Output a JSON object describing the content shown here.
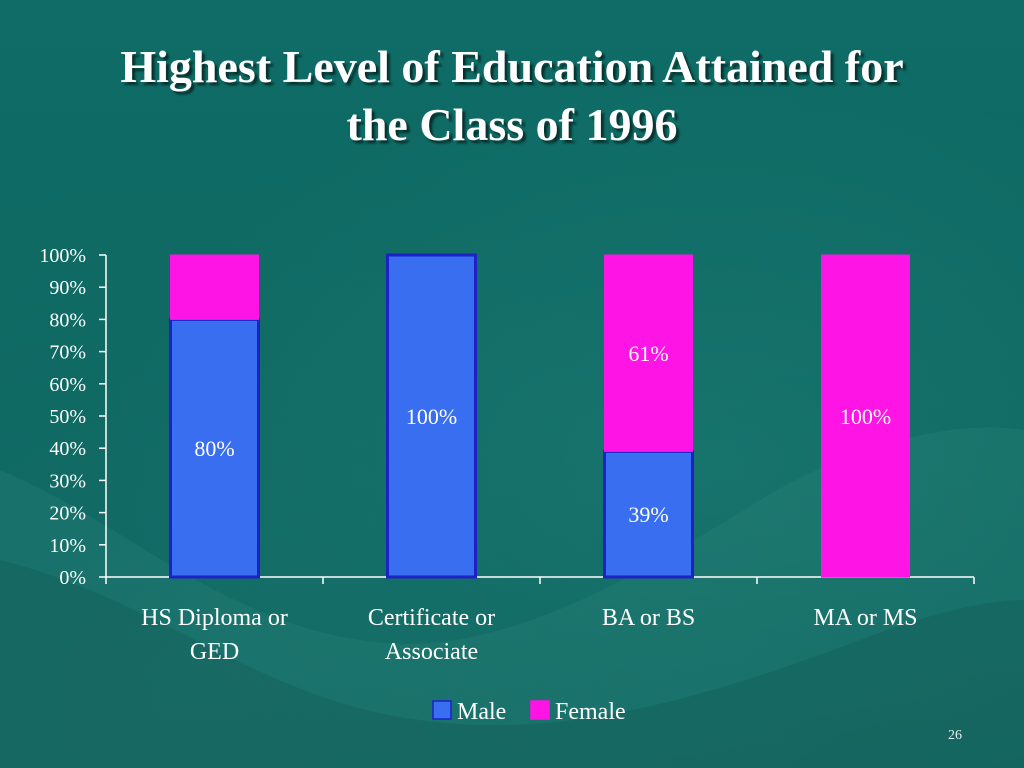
{
  "slide": {
    "title_line1": "Highest Level of Education Attained for",
    "title_line2": "the Class of 1996",
    "page_number": "26"
  },
  "colors": {
    "background": "#0d6660",
    "male": "#3a6ef0",
    "male_border": "#1a22c8",
    "female": "#ff14e6",
    "text": "#ffffff"
  },
  "chart_data": {
    "type": "bar",
    "stacked": true,
    "categories": [
      [
        "HS Diploma or",
        "GED"
      ],
      [
        "Certificate or",
        "Associate"
      ],
      [
        "BA or BS"
      ],
      [
        "MA or MS"
      ]
    ],
    "series": [
      {
        "name": "Male",
        "values": [
          80,
          100,
          39,
          0
        ],
        "labels": [
          "80%",
          "100%",
          "39%",
          ""
        ]
      },
      {
        "name": "Female",
        "values": [
          20,
          0,
          61,
          100
        ],
        "labels": [
          "",
          "",
          "61%",
          "100%"
        ]
      }
    ],
    "ylim": [
      0,
      100
    ],
    "yticks": [
      "0%",
      "10%",
      "20%",
      "30%",
      "40%",
      "50%",
      "60%",
      "70%",
      "80%",
      "90%",
      "100%"
    ],
    "legend_position": "bottom"
  }
}
